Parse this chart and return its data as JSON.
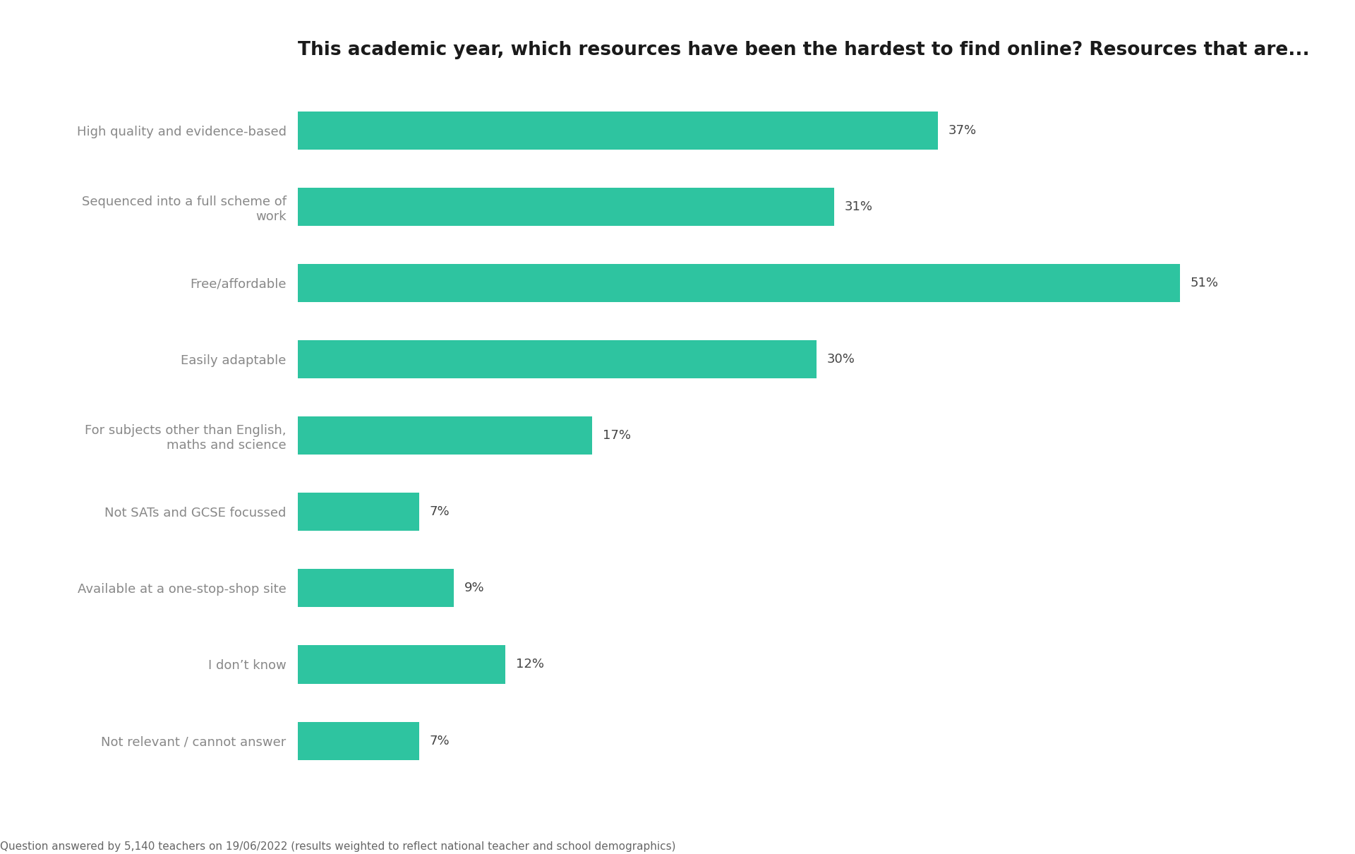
{
  "title": "This academic year, which resources have been the hardest to find online? Resources that are...",
  "categories": [
    "High quality and evidence-based",
    "Sequenced into a full scheme of\nwork",
    "Free/affordable",
    "Easily adaptable",
    "For subjects other than English,\nmaths and science",
    "Not SATs and GCSE focussed",
    "Available at a one-stop-shop site",
    "I don’t know",
    "Not relevant / cannot answer"
  ],
  "values": [
    37,
    31,
    51,
    30,
    17,
    7,
    9,
    12,
    7
  ],
  "bar_color": "#2EC4A0",
  "background_color": "#ffffff",
  "title_fontsize": 19,
  "label_fontsize": 13,
  "value_fontsize": 13,
  "footer": "Question answered by 5,140 teachers on 19/06/2022 (results weighted to reflect national teacher and school demographics)",
  "footer_fontsize": 11,
  "xlim": [
    0,
    58
  ],
  "bar_height": 0.5
}
